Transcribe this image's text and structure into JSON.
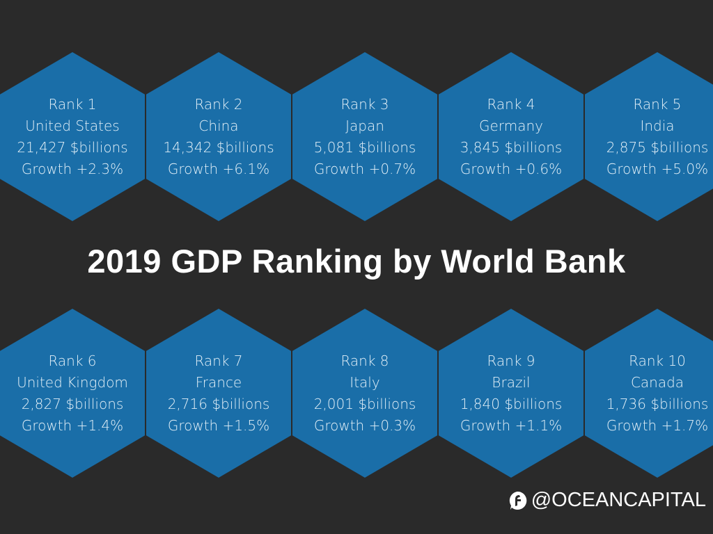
{
  "title": "2019 GDP Ranking by World Bank",
  "brand": "@OCEANCAPITAL",
  "colors": {
    "background": "#2a2a2a",
    "hexagon": "#1a6ea8",
    "text": "#e3f0f8"
  },
  "rankings": [
    {
      "rank": "Rank 1",
      "country": "United States",
      "gdp": "21,427 $billions",
      "growth": "Growth +2.3%"
    },
    {
      "rank": "Rank 2",
      "country": "China",
      "gdp": "14,342 $billions",
      "growth": "Growth +6.1%"
    },
    {
      "rank": "Rank 3",
      "country": "Japan",
      "gdp": "5,081 $billions",
      "growth": "Growth +0.7%"
    },
    {
      "rank": "Rank 4",
      "country": "Germany",
      "gdp": "3,845 $billions",
      "growth": "Growth +0.6%"
    },
    {
      "rank": "Rank 5",
      "country": "India",
      "gdp": "2,875 $billions",
      "growth": "Growth +5.0%"
    },
    {
      "rank": "Rank 6",
      "country": "United Kingdom",
      "gdp": "2,827 $billions",
      "growth": "Growth +1.4%"
    },
    {
      "rank": "Rank 7",
      "country": "France",
      "gdp": "2,716 $billions",
      "growth": "Growth +1.5%"
    },
    {
      "rank": "Rank 8",
      "country": "Italy",
      "gdp": "2,001 $billions",
      "growth": "Growth +0.3%"
    },
    {
      "rank": "Rank 9",
      "country": "Brazil",
      "gdp": "1,840 $billions",
      "growth": "Growth +1.1%"
    },
    {
      "rank": "Rank 10",
      "country": "Canada",
      "gdp": "1,736 $billions",
      "growth": "Growth +1.7%"
    }
  ]
}
